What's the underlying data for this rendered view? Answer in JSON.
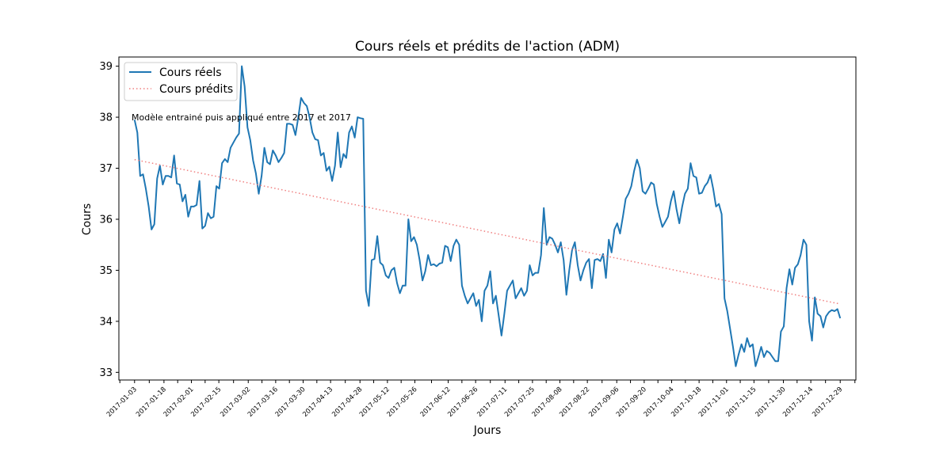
{
  "chart_data": {
    "type": "line",
    "title": "Cours réels et prédits de l'action (ADM)",
    "xlabel": "Jours",
    "ylabel": "Cours",
    "annotation": "Modèle entrainé puis appliqué entre 2017 et 2017",
    "legend_position": "top-left",
    "grid": false,
    "xlim": [
      "2016-12-26",
      "2018-01-06"
    ],
    "ylim": [
      32.85,
      39.18
    ],
    "y_ticks": [
      33,
      34,
      35,
      36,
      37,
      38,
      39
    ],
    "x_tick_labels": [
      "2017-01-03",
      "2017-01-18",
      "2017-02-01",
      "2017-02-15",
      "2017-03-02",
      "2017-03-16",
      "2017-03-30",
      "2017-04-13",
      "2017-04-28",
      "2017-05-12",
      "2017-05-26",
      "2017-06-12",
      "2017-06-26",
      "2017-07-11",
      "2017-07-25",
      "2017-08-08",
      "2017-08-22",
      "2017-09-06",
      "2017-09-20",
      "2017-10-04",
      "2017-10-18",
      "2017-11-01",
      "2017-11-15",
      "2017-11-30",
      "2017-12-14",
      "2017-12-29"
    ],
    "series": [
      {
        "name": "Cours réels",
        "color": "#1f77b4",
        "style": "solid",
        "values": [
          37.95,
          37.7,
          36.85,
          36.88,
          36.6,
          36.25,
          35.8,
          35.9,
          36.8,
          37.05,
          36.68,
          36.85,
          36.85,
          36.82,
          37.25,
          36.7,
          36.68,
          36.35,
          36.48,
          36.05,
          36.25,
          36.25,
          36.28,
          36.75,
          35.82,
          35.87,
          36.12,
          36.02,
          36.05,
          36.65,
          36.6,
          37.1,
          37.18,
          37.12,
          37.4,
          37.5,
          37.6,
          37.68,
          39.0,
          38.6,
          37.8,
          37.55,
          37.15,
          36.9,
          36.5,
          36.85,
          37.4,
          37.12,
          37.08,
          37.35,
          37.25,
          37.12,
          37.2,
          37.3,
          37.87,
          37.87,
          37.85,
          37.65,
          38.0,
          38.38,
          38.28,
          38.22,
          38.0,
          37.7,
          37.57,
          37.55,
          37.25,
          37.3,
          36.95,
          37.03,
          36.75,
          37.05,
          37.7,
          37.02,
          37.28,
          37.2,
          37.7,
          37.82,
          37.6,
          38.0,
          37.98,
          37.97,
          34.6,
          34.3,
          35.2,
          35.22,
          35.67,
          35.15,
          35.1,
          34.9,
          34.85,
          35.0,
          35.05,
          34.75,
          34.55,
          34.7,
          34.7,
          36.0,
          35.57,
          35.65,
          35.5,
          35.2,
          34.8,
          34.98,
          35.3,
          35.1,
          35.12,
          35.08,
          35.13,
          35.15,
          35.48,
          35.45,
          35.18,
          35.48,
          35.6,
          35.5,
          34.7,
          34.5,
          34.35,
          34.45,
          34.55,
          34.3,
          34.42,
          34.0,
          34.6,
          34.7,
          34.98,
          34.35,
          34.5,
          34.12,
          33.72,
          34.15,
          34.6,
          34.7,
          34.8,
          34.45,
          34.55,
          34.65,
          34.5,
          34.6,
          35.1,
          34.9,
          34.95,
          34.95,
          35.3,
          36.22,
          35.5,
          35.65,
          35.62,
          35.5,
          35.35,
          35.55,
          35.2,
          34.52,
          35.0,
          35.4,
          35.55,
          35.1,
          34.8,
          35.0,
          35.15,
          35.22,
          34.65,
          35.2,
          35.22,
          35.18,
          35.32,
          34.85,
          35.6,
          35.35,
          35.8,
          35.92,
          35.72,
          36.05,
          36.4,
          36.5,
          36.65,
          36.95,
          37.17,
          37.0,
          36.55,
          36.5,
          36.6,
          36.72,
          36.68,
          36.3,
          36.05,
          35.85,
          35.95,
          36.05,
          36.35,
          36.55,
          36.2,
          35.92,
          36.25,
          36.5,
          36.6,
          37.1,
          36.85,
          36.82,
          36.5,
          36.52,
          36.65,
          36.72,
          36.87,
          36.6,
          36.25,
          36.3,
          36.1,
          34.45,
          34.2,
          33.85,
          33.5,
          33.12,
          33.35,
          33.55,
          33.4,
          33.67,
          33.5,
          33.55,
          33.12,
          33.3,
          33.5,
          33.3,
          33.42,
          33.38,
          33.3,
          33.22,
          33.22,
          33.8,
          33.9,
          34.65,
          35.02,
          34.72,
          35.05,
          35.12,
          35.3,
          35.6,
          35.5,
          34.0,
          33.62,
          34.47,
          34.15,
          34.1,
          33.88,
          34.1,
          34.18,
          34.22,
          34.2,
          34.24,
          34.06
        ]
      },
      {
        "name": "Cours prédits",
        "color": "#f08080",
        "style": "dotted",
        "values": [
          37.17,
          34.34
        ]
      }
    ]
  }
}
